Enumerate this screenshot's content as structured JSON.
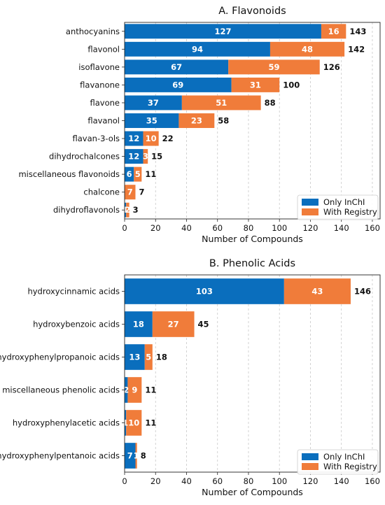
{
  "colors": {
    "inchi": "#0a6ebd",
    "registry": "#f07c3a"
  },
  "chart_data": [
    {
      "type": "bar",
      "orientation": "horizontal",
      "stacked": true,
      "title": "A. Flavonoids",
      "xlabel": "Number of Compounds",
      "ylabel": "",
      "xlim": [
        0,
        165
      ],
      "xticks": [
        0,
        20,
        40,
        60,
        80,
        100,
        120,
        140,
        160
      ],
      "grid": "x-dashed",
      "legend": "bottom-right",
      "categories": [
        "anthocyanins",
        "flavonol",
        "isoflavone",
        "flavanone",
        "flavone",
        "flavanol",
        "flavan-3-ols",
        "dihydrochalcones",
        "miscellaneous flavonoids",
        "chalcone",
        "dihydroflavonols"
      ],
      "series": [
        {
          "name": "Only InChI",
          "values": [
            127,
            94,
            67,
            69,
            37,
            35,
            12,
            12,
            6,
            0,
            1
          ]
        },
        {
          "name": "With Registry",
          "values": [
            16,
            48,
            59,
            31,
            51,
            23,
            10,
            3,
            5,
            7,
            2
          ]
        }
      ],
      "totals": [
        143,
        142,
        126,
        100,
        88,
        58,
        22,
        15,
        11,
        7,
        3
      ]
    },
    {
      "type": "bar",
      "orientation": "horizontal",
      "stacked": true,
      "title": "B. Phenolic Acids",
      "xlabel": "Number of Compounds",
      "ylabel": "",
      "xlim": [
        0,
        165
      ],
      "xticks": [
        0,
        20,
        40,
        60,
        80,
        100,
        120,
        140,
        160
      ],
      "grid": "x-dashed",
      "legend": "bottom-right",
      "categories": [
        "hydroxycinnamic acids",
        "hydroxybenzoic acids",
        "hydroxyphenylpropanoic acids",
        "miscellaneous phenolic acids",
        "hydroxyphenylacetic acids",
        "hydroxyphenylpentanoic acids"
      ],
      "series": [
        {
          "name": "Only InChI",
          "values": [
            103,
            18,
            13,
            2,
            1,
            7
          ]
        },
        {
          "name": "With Registry",
          "values": [
            43,
            27,
            5,
            9,
            10,
            1
          ]
        }
      ],
      "totals": [
        146,
        45,
        18,
        11,
        11,
        8
      ]
    }
  ]
}
